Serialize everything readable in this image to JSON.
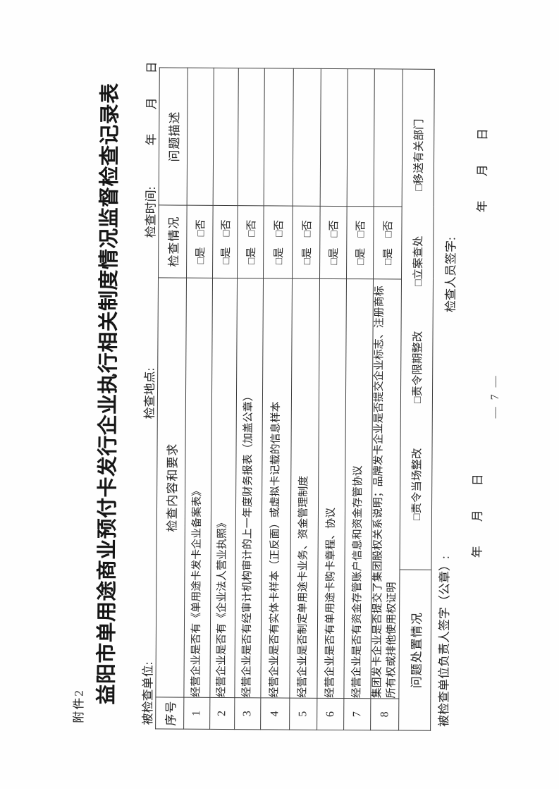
{
  "attachment_label": "附件2",
  "title": "益阳市单用途商业预付卡发行企业执行相关制度情况监督检查记录表",
  "info_line": {
    "unit_label": "被检查单位:",
    "location_label": "检查地点:",
    "time_label": "检查时间:",
    "date_placeholder": "年　　月　　日"
  },
  "table": {
    "headers": [
      "序号",
      "检查内容和要求",
      "检查情况",
      "问题描述"
    ],
    "check_option": "□是　□否",
    "rows": [
      {
        "no": "1",
        "content": "经营企业是否有《单用途卡发卡企业备案表》",
        "description": ""
      },
      {
        "no": "2",
        "content": "经营企业是否有《企业法人营业执照》",
        "description": ""
      },
      {
        "no": "3",
        "content": "经营企业是否有经审计机构审计的上一年度财务报表（加盖公章）",
        "description": ""
      },
      {
        "no": "4",
        "content": "经营企业是否有实体卡样本（正反面）或虚拟卡记载的信息样本",
        "description": ""
      },
      {
        "no": "5",
        "content": "经营企业是否制定单用途卡业务、资金管理制度",
        "description": ""
      },
      {
        "no": "6",
        "content": "经营企业是否有单用途卡购卡章程、协议",
        "description": ""
      },
      {
        "no": "7",
        "content": "经营企业是否有资金存管账户信息和资金存管协议",
        "description": ""
      },
      {
        "no": "8",
        "content": "集团发卡企业是否提交了集团股权关系说明；品牌发卡企业是否提交企业标志、注册商标所有权或排他使用权证明",
        "description": ""
      }
    ],
    "disposal": {
      "label": "问题处置情况",
      "options": [
        "□责令当场整改",
        "□责令限期整改",
        "□立案查处",
        "□移送有关部门"
      ]
    }
  },
  "footer": {
    "unit_sign_label": "被检查单位负责人签字（公章）:",
    "inspector_sign_label": "检查人员签字:",
    "date_placeholder": "年　　月　　日",
    "page_number": "— 7 —"
  }
}
